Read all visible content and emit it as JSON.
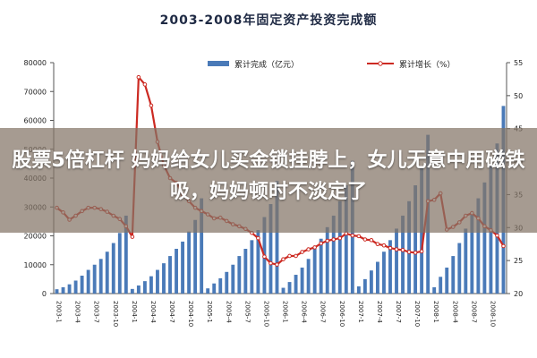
{
  "chart_data": {
    "type": "bar",
    "title": "2003-2008年固定资产投资完成额",
    "legend": {
      "bar": "累计完成（亿元）",
      "line": "累计增长（%）",
      "placement": "top-right"
    },
    "left_axis": {
      "ylim": [
        0,
        80000
      ],
      "ticks": [
        "0",
        "10000",
        "20000",
        "30000",
        "40000",
        "50000",
        "60000",
        "70000",
        "80000"
      ]
    },
    "right_axis": {
      "ylim": [
        20,
        55
      ],
      "ticks": [
        "20",
        "25",
        "30",
        "35",
        "40",
        "45",
        "50",
        "55"
      ]
    },
    "categories": [
      "2003-1",
      "2003-2",
      "2003-3",
      "2003-4",
      "2003-5",
      "2003-6",
      "2003-7",
      "2003-8",
      "2003-9",
      "2003-10",
      "2003-11",
      "2003-12",
      "2004-1",
      "2004-2",
      "2004-3",
      "2004-4",
      "2004-5",
      "2004-6",
      "2004-7",
      "2004-8",
      "2004-9",
      "2004-10",
      "2004-11",
      "2004-12",
      "2005-1",
      "2005-2",
      "2005-3",
      "2005-4",
      "2005-5",
      "2005-6",
      "2005-7",
      "2005-8",
      "2005-9",
      "2005-10",
      "2005-11",
      "2005-12",
      "2006-1",
      "2006-2",
      "2006-3",
      "2006-4",
      "2006-5",
      "2006-6",
      "2006-7",
      "2006-8",
      "2006-9",
      "2006-10",
      "2006-11",
      "2006-12",
      "2007-1",
      "2007-2",
      "2007-3",
      "2007-4",
      "2007-5",
      "2007-6",
      "2007-7",
      "2007-8",
      "2007-9",
      "2007-10",
      "2007-11",
      "2007-12",
      "2008-1",
      "2008-2",
      "2008-3",
      "2008-4",
      "2008-5",
      "2008-6",
      "2008-7",
      "2008-8",
      "2008-9",
      "2008-10",
      "2008-11",
      "2008-12"
    ],
    "tick_labels": [
      "2003-1",
      "2003-4",
      "2003-7",
      "2003-10",
      "2004-1",
      "2004-4",
      "2004-7",
      "2004-10",
      "2005-1",
      "2005-4",
      "2005-7",
      "2005-10",
      "2006-1",
      "2006-4",
      "2006-7",
      "2006-10",
      "2007-1",
      "2007-4",
      "2007-7",
      "2007-10",
      "2008-1",
      "2008-4",
      "2008-7",
      "2008-10"
    ],
    "series": [
      {
        "name": "累计完成（亿元）",
        "kind": "bar",
        "axis": "left",
        "color": "#4a7ab8",
        "values": [
          1500,
          2200,
          3200,
          4500,
          6200,
          8200,
          10000,
          12000,
          14500,
          17500,
          21000,
          27000,
          1600,
          2800,
          4300,
          6000,
          8200,
          10500,
          13000,
          15500,
          18000,
          21500,
          25500,
          33000,
          1800,
          3500,
          5300,
          7500,
          10000,
          13000,
          15500,
          18500,
          22000,
          26500,
          31000,
          39000,
          2000,
          4000,
          6500,
          9000,
          12000,
          15500,
          19000,
          23000,
          27000,
          32000,
          37500,
          46000,
          2500,
          5000,
          8000,
          11000,
          14500,
          18500,
          22500,
          27000,
          32000,
          37500,
          44000,
          55000,
          2200,
          5800,
          9000,
          13000,
          17500,
          22500,
          27500,
          33000,
          38500,
          44500,
          52000,
          65000
        ]
      },
      {
        "name": "累计增长（%）",
        "kind": "line",
        "axis": "right",
        "color": "#cc2a22",
        "values": [
          33,
          32.3,
          31.2,
          31.8,
          32.5,
          33,
          33,
          32.8,
          32.4,
          31.8,
          31.3,
          30.2,
          28.6,
          52.8,
          51.7,
          48.5,
          43,
          39.5,
          37.5,
          36.8,
          35,
          34,
          33,
          32.5,
          32,
          31.4,
          31.5,
          31,
          30.5,
          30.2,
          29.8,
          29.2,
          28.4,
          25.6,
          24.6,
          24.4,
          25.2,
          25.7,
          25.7,
          26.3,
          26.7,
          27,
          27.6,
          28,
          28.2,
          28.4,
          29.1,
          28.8,
          28.7,
          28.2,
          28.1,
          27.5,
          27.3,
          26.9,
          26.7,
          26.6,
          26.3,
          26.2,
          26.4,
          34,
          34.2,
          35.2,
          29.7,
          30.1,
          30.8,
          31.8,
          32.2,
          31.4,
          30.2,
          29.6,
          28.8,
          27.2
        ]
      }
    ],
    "grid": false
  },
  "overlay": {
    "text": "股票5倍杠杆 妈妈给女儿买金锁挂脖上，女儿无意中用磁铁吸，妈妈顿时不淡定了"
  }
}
